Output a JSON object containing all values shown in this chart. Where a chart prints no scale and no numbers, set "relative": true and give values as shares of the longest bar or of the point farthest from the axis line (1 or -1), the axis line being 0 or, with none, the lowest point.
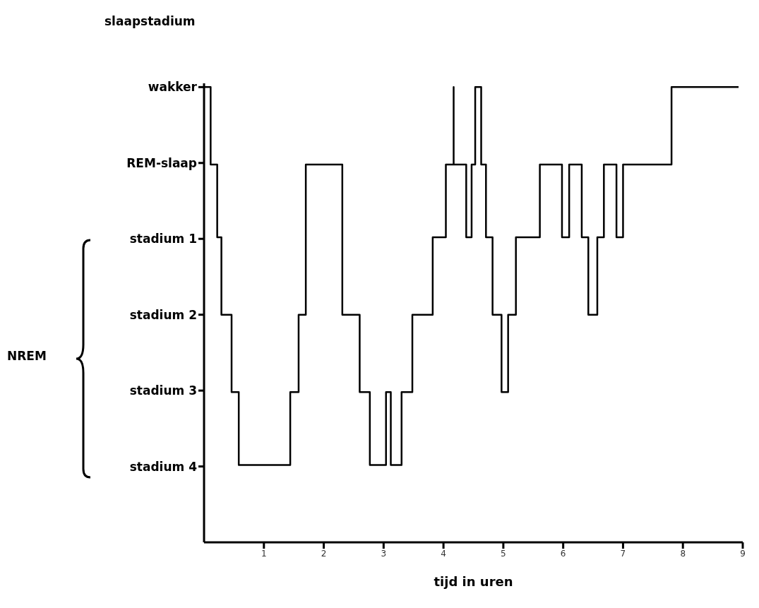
{
  "chart_data": {
    "type": "step",
    "relative": true,
    "xlabel": "tijd in uren",
    "ylabel": "slaapstadium",
    "annotations": [
      "NREM"
    ],
    "y_categories": [
      "wakker",
      "REM-slaap",
      "stadium 1",
      "stadium 2",
      "stadium 3",
      "stadium 4"
    ],
    "x": [
      0,
      0.11,
      0.22,
      0.29,
      0.46,
      0.58,
      1.44,
      1.58,
      1.7,
      2.31,
      2.6,
      2.77,
      3.04,
      3.12,
      3.3,
      3.48,
      3.82,
      4.04,
      4.17,
      4.17,
      4.38,
      4.47,
      4.53,
      4.63,
      4.71,
      4.82,
      4.97,
      5.08,
      5.21,
      5.61,
      5.98,
      6.1,
      6.31,
      6.42,
      6.57,
      6.68,
      6.89,
      7.0,
      7.81,
      8.93
    ],
    "values": [
      1,
      0.83,
      0.67,
      0.5,
      0.33,
      0.17,
      0.33,
      0.5,
      0.83,
      0.5,
      0.33,
      0.17,
      0.33,
      0.17,
      0.33,
      0.5,
      0.67,
      0.83,
      1,
      0.83,
      0.67,
      0.83,
      1,
      0.83,
      0.67,
      0.5,
      0.33,
      0.5,
      0.67,
      0.83,
      0.67,
      0.83,
      0.67,
      0.5,
      0.67,
      0.83,
      0.67,
      0.83,
      1,
      1
    ],
    "color": "#000000",
    "line_style": "solid",
    "xlim": [
      0,
      9
    ],
    "xticks": [
      1,
      2,
      3,
      4,
      5,
      6,
      7,
      8,
      9
    ]
  }
}
